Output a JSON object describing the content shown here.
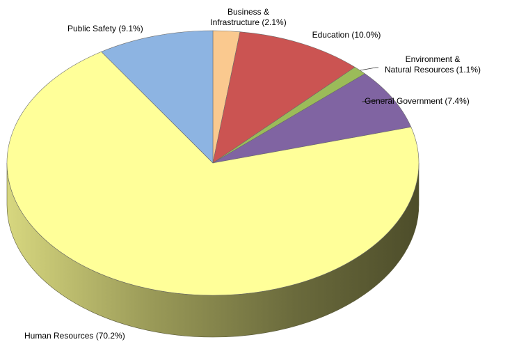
{
  "chart_data": {
    "type": "pie",
    "style": "3d",
    "start_angle_deg": 90,
    "direction": "clockwise",
    "legend": "none",
    "slices": [
      {
        "label_lines": [
          "Business &",
          "Infrastructure (2.1%)"
        ],
        "value": 2.1,
        "color": "#FAC98F"
      },
      {
        "label_lines": [
          "Education (10.0%)"
        ],
        "value": 10.0,
        "color": "#CB5452"
      },
      {
        "label_lines": [
          "Environment &",
          "Natural Resources (1.1%)"
        ],
        "value": 1.1,
        "color": "#9BBB59"
      },
      {
        "label_lines": [
          "General Government (7.4%)"
        ],
        "value": 7.4,
        "color": "#8064A2"
      },
      {
        "label_lines": [
          "Human Resources (70.2%)"
        ],
        "value": 70.2,
        "color": "#FFFF99"
      },
      {
        "label_lines": [
          "Public Safety (9.1%)"
        ],
        "value": 9.1,
        "color": "#8DB4E2"
      }
    ]
  }
}
